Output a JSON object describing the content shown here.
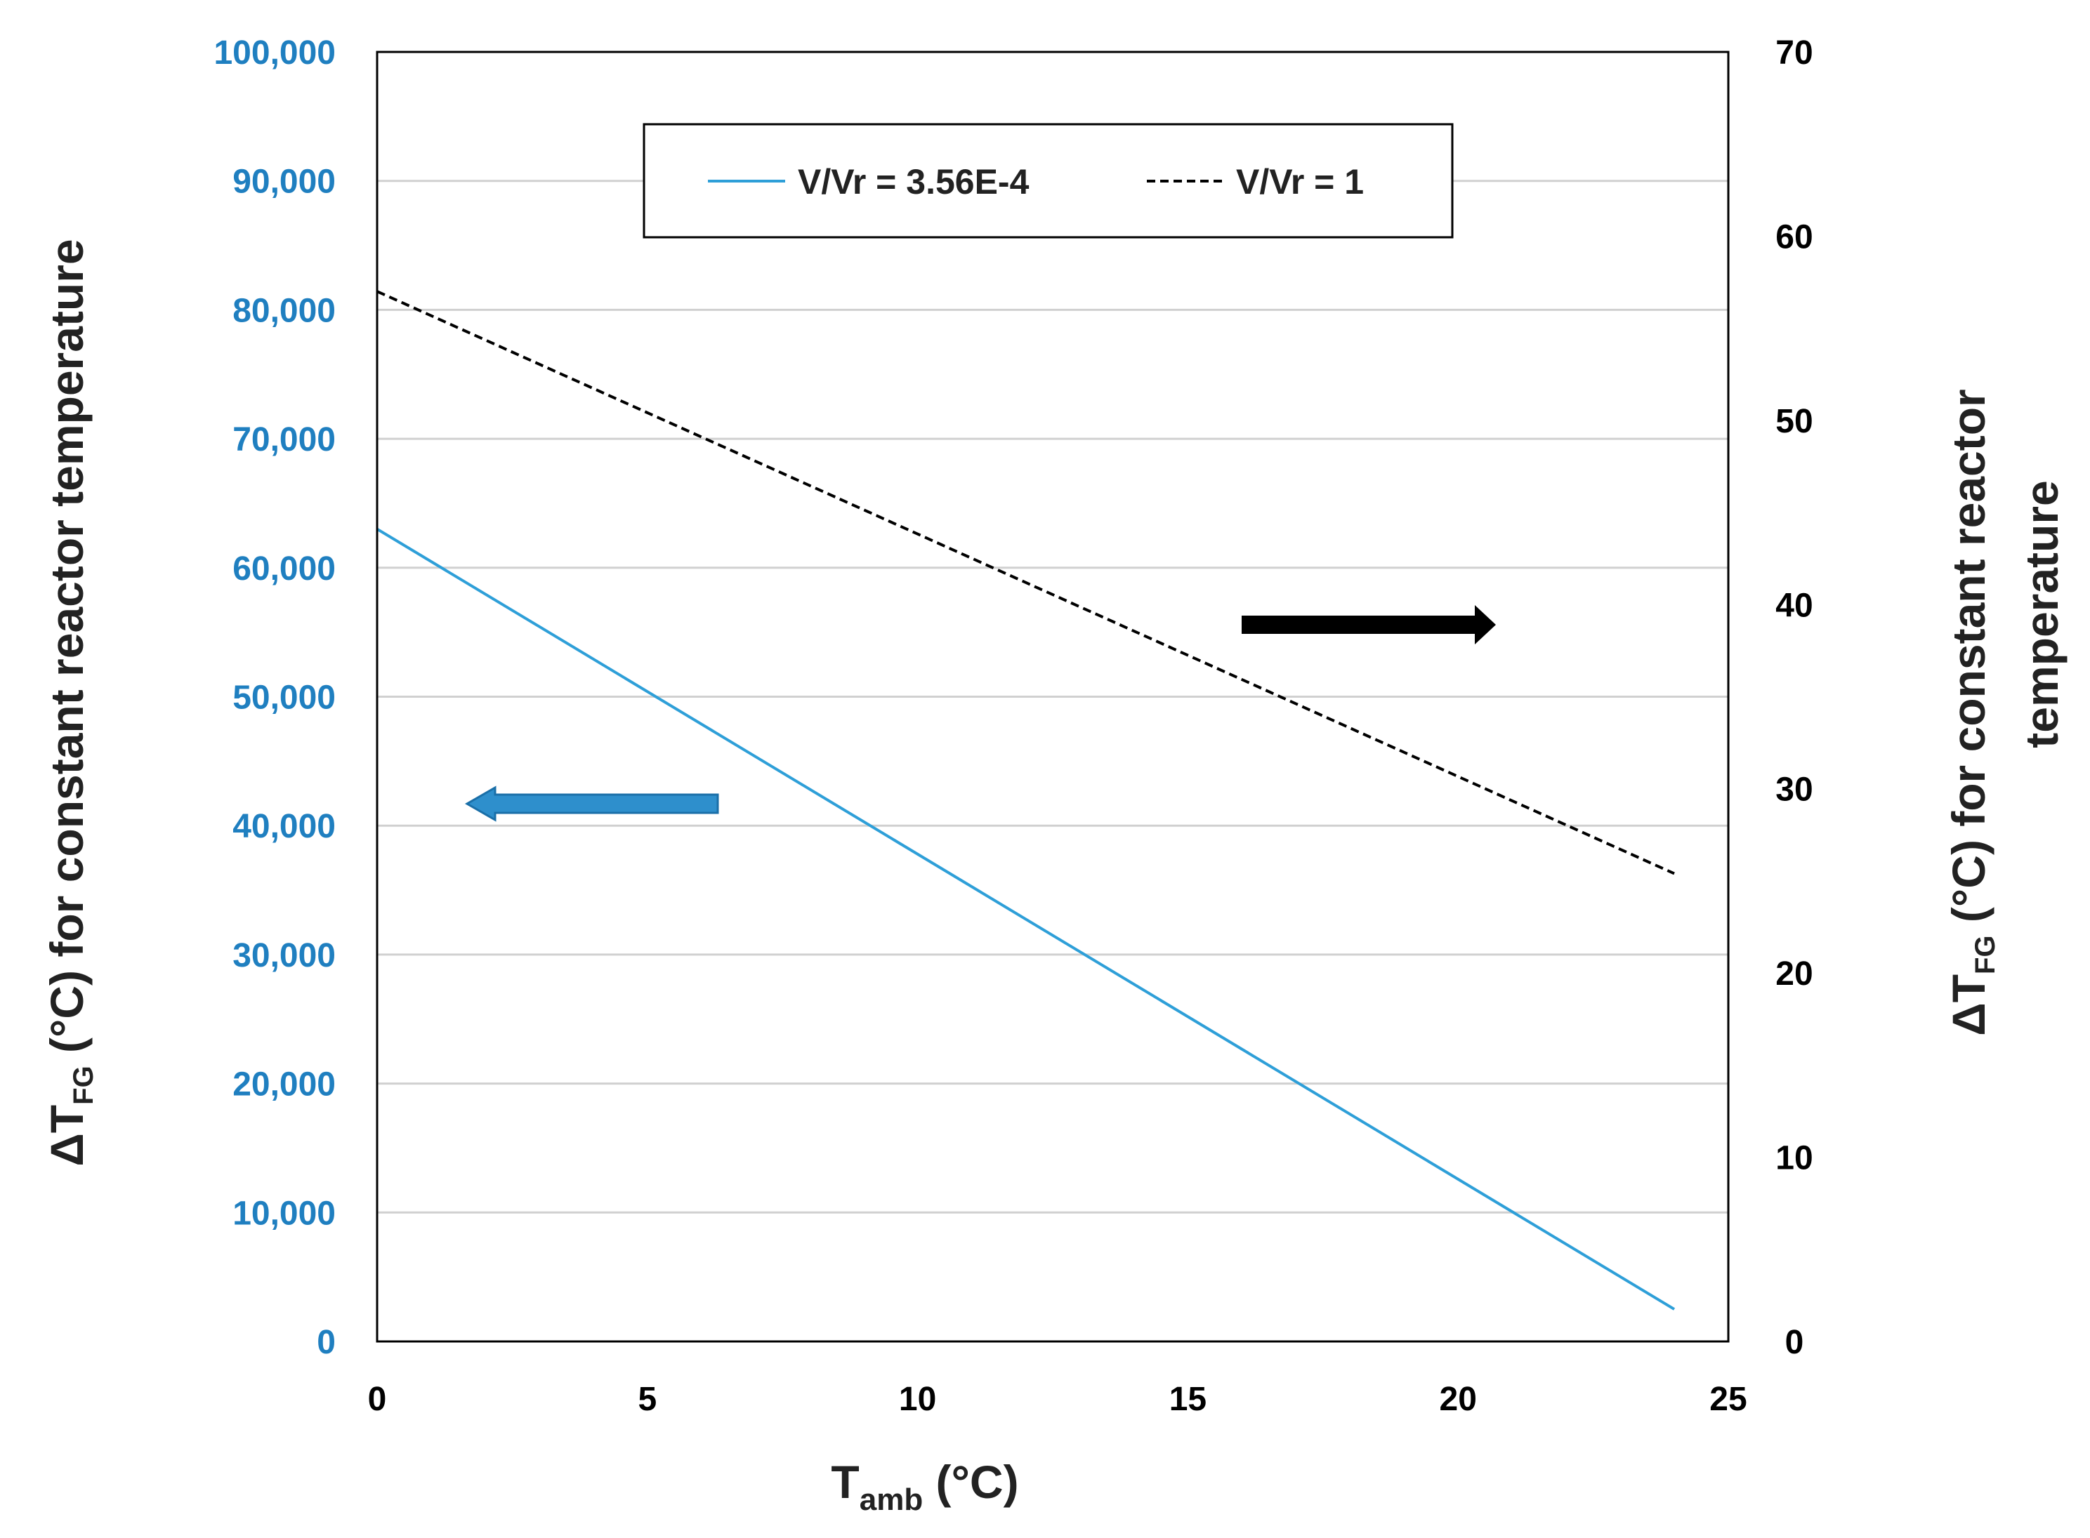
{
  "chart_data": {
    "type": "line",
    "title": "",
    "x": [
      0,
      24
    ],
    "xlim": [
      0,
      25
    ],
    "x_ticks": [
      0,
      5,
      10,
      15,
      20,
      25
    ],
    "x_tick_labels": [
      "0",
      "5",
      "10",
      "15",
      "20",
      "25"
    ],
    "xlabel_main": "T",
    "xlabel_sub": "amb",
    "xlabel_tail": " (°C)",
    "ylim_left": [
      0,
      100000
    ],
    "y_left_ticks": [
      0,
      10000,
      20000,
      30000,
      40000,
      50000,
      60000,
      70000,
      80000,
      90000,
      100000
    ],
    "y_left_tick_labels": [
      "0",
      "10,000",
      "20,000",
      "30,000",
      "40,000",
      "50,000",
      "60,000",
      "70,000",
      "80,000",
      "90,000",
      "100,000"
    ],
    "ylim_right": [
      0,
      70
    ],
    "y_right_ticks": [
      0,
      10,
      20,
      30,
      40,
      50,
      60,
      70
    ],
    "y_right_tick_labels": [
      "0",
      "10",
      "20",
      "30",
      "40",
      "50",
      "60",
      "70"
    ],
    "ylabel_left": {
      "pre": "ΔT",
      "sub": "FG",
      "post": " (°C) for constant reactor temperature"
    },
    "ylabel_right": {
      "pre": "ΔT",
      "sub": "FG",
      "post": " (°C) for constant reactor",
      "line2": "temperature"
    },
    "grid": true,
    "legend_position": "top-center",
    "series": [
      {
        "name": "V/Vr = 3.56E-4",
        "axis": "left",
        "style": "solid",
        "color": "#2e9fd8",
        "x": [
          0,
          24
        ],
        "values": [
          63000,
          2500
        ]
      },
      {
        "name": "V/Vr = 1",
        "axis": "right",
        "style": "dashed",
        "color": "#000000",
        "x": [
          0,
          24
        ],
        "values": [
          57,
          25.4
        ]
      }
    ],
    "annotations": [
      {
        "type": "arrow",
        "direction": "left",
        "meaning": "series uses left axis",
        "color": "#2e8fcc"
      },
      {
        "type": "arrow",
        "direction": "right",
        "meaning": "series uses right axis",
        "color": "#000000"
      }
    ]
  },
  "colors": {
    "left_axis": "#1f7fc0",
    "gridline": "#d0d0d0",
    "frame": "#000000"
  }
}
